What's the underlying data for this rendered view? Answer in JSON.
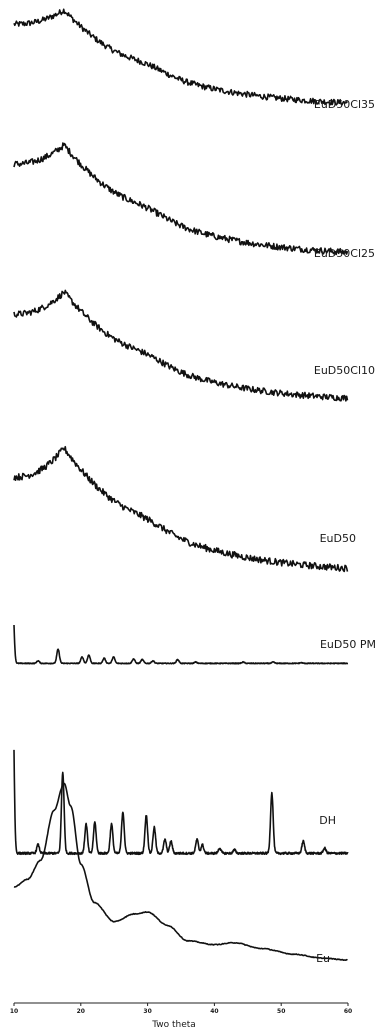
{
  "chart_data": {
    "type": "line",
    "xlabel": "Two theta",
    "x_ticks": [
      "10",
      "20",
      "30",
      "40",
      "50",
      "60"
    ],
    "xlim": [
      10,
      60
    ],
    "grid": false,
    "legend": "labels at right end of each trace",
    "series": [
      {
        "name": "EuD50Cl35",
        "kind": "amorphous",
        "broad_peak": 17.5,
        "start_level": 0.88,
        "peak_level": 1.0,
        "end_level": 0.18
      },
      {
        "name": "EuD50Cl25",
        "kind": "amorphous",
        "broad_peak": 17.5,
        "start_level": 0.85,
        "peak_level": 1.0,
        "end_level": 0.12
      },
      {
        "name": "EuD50Cl10",
        "kind": "amorphous",
        "broad_peak": 17.5,
        "start_level": 0.82,
        "peak_level": 1.0,
        "end_level": 0.1
      },
      {
        "name": "EuD50",
        "kind": "amorphous",
        "broad_peak": 17.5,
        "start_level": 0.78,
        "peak_level": 1.0,
        "end_level": 0.05
      },
      {
        "name": "EuD50 PM",
        "kind": "crystalline",
        "peaks": [
          [
            9.8,
            1.0
          ],
          [
            13.6,
            0.04
          ],
          [
            16.6,
            0.22
          ],
          [
            20.2,
            0.1
          ],
          [
            21.2,
            0.13
          ],
          [
            23.5,
            0.08
          ],
          [
            24.9,
            0.1
          ],
          [
            27.9,
            0.07
          ],
          [
            29.2,
            0.06
          ],
          [
            30.8,
            0.04
          ],
          [
            34.5,
            0.06
          ],
          [
            37.2,
            0.02
          ],
          [
            44.3,
            0.02
          ],
          [
            48.8,
            0.02
          ],
          [
            53.0,
            0.01
          ]
        ]
      },
      {
        "name": "DH",
        "kind": "crystalline",
        "peaks": [
          [
            9.8,
            1.0
          ],
          [
            13.6,
            0.05
          ],
          [
            17.3,
            0.47
          ],
          [
            20.8,
            0.17
          ],
          [
            22.1,
            0.18
          ],
          [
            24.6,
            0.17
          ],
          [
            26.3,
            0.24
          ],
          [
            29.8,
            0.22
          ],
          [
            31.0,
            0.15
          ],
          [
            32.6,
            0.08
          ],
          [
            33.5,
            0.07
          ],
          [
            37.4,
            0.08
          ],
          [
            38.2,
            0.05
          ],
          [
            40.8,
            0.03
          ],
          [
            43.0,
            0.02
          ],
          [
            48.6,
            0.35
          ],
          [
            53.3,
            0.07
          ],
          [
            56.5,
            0.03
          ]
        ]
      },
      {
        "name": "Eu",
        "kind": "amorphous-polymer",
        "points": [
          [
            10,
            0.38
          ],
          [
            12,
            0.42
          ],
          [
            14,
            0.52
          ],
          [
            16,
            0.78
          ],
          [
            17.5,
            0.92
          ],
          [
            18.5,
            0.8
          ],
          [
            20,
            0.5
          ],
          [
            22,
            0.3
          ],
          [
            25,
            0.2
          ],
          [
            28,
            0.24
          ],
          [
            30,
            0.25
          ],
          [
            33,
            0.18
          ],
          [
            36,
            0.1
          ],
          [
            40,
            0.08
          ],
          [
            43,
            0.09
          ],
          [
            47,
            0.06
          ],
          [
            52,
            0.03
          ],
          [
            56,
            0.01
          ],
          [
            60,
            0.0
          ]
        ]
      }
    ]
  }
}
